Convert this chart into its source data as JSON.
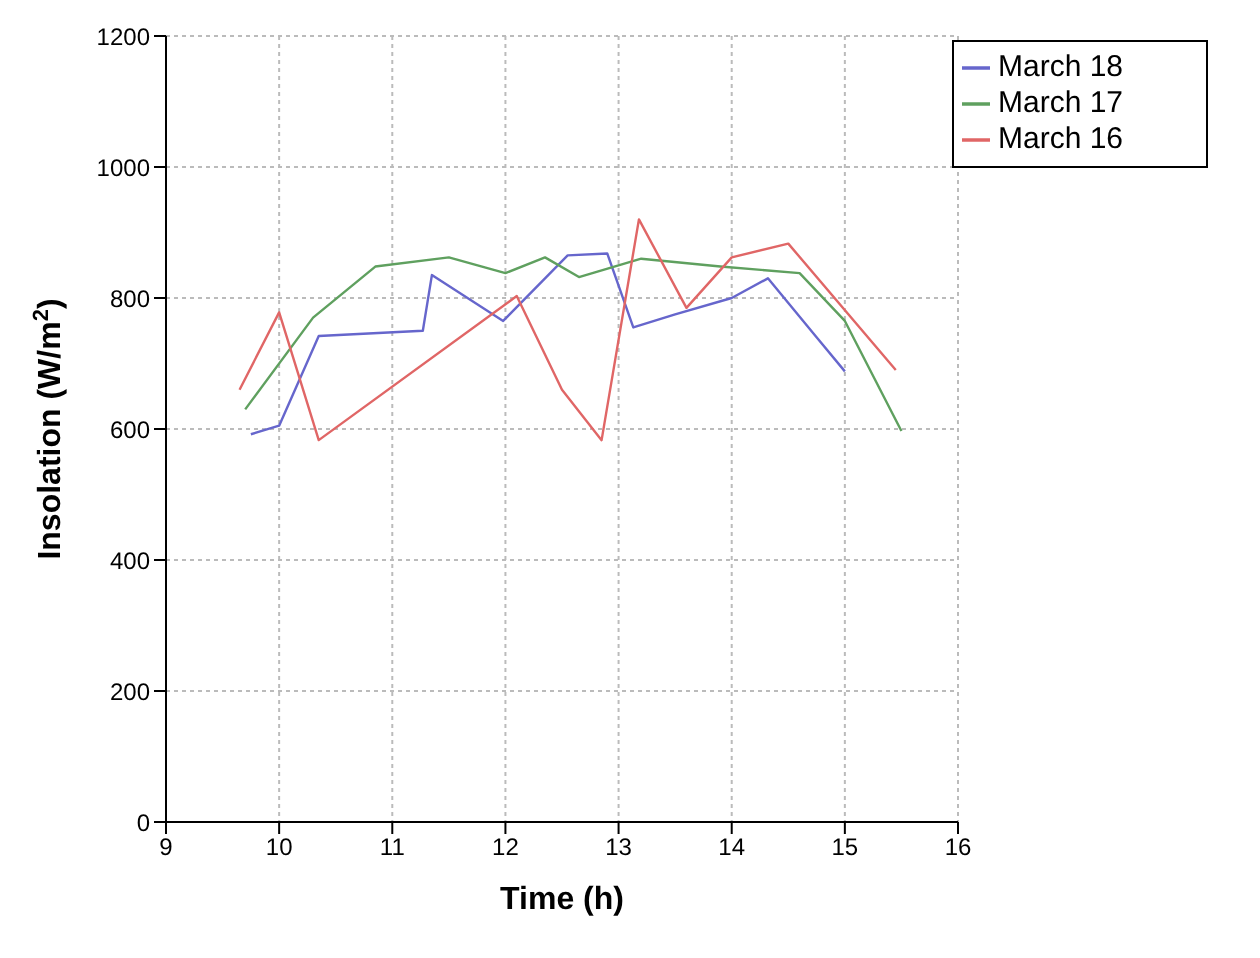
{
  "chart_data": {
    "type": "line",
    "xlabel": "Time (h)",
    "ylabel": "Insolation (W/m$^{2}$)",
    "xlim": [
      9,
      16
    ],
    "xticks": [
      9,
      10,
      11,
      12,
      13,
      14,
      15,
      16
    ],
    "ylim": [
      0,
      1200
    ],
    "yticks": [
      0,
      200,
      400,
      600,
      800,
      1000,
      1200
    ],
    "grid": true,
    "legend": "top right",
    "series": [
      {
        "name": "March 18",
        "color": "#6666cc",
        "x": [
          9.75,
          10,
          10.35,
          11.27,
          11.35,
          11.98,
          12.55,
          12.9,
          13.13,
          13.5,
          14,
          14.32,
          14.75,
          15
        ],
        "values": [
          592,
          605,
          742,
          750,
          835,
          765,
          865,
          868,
          755,
          775,
          800,
          830,
          740,
          688
        ]
      },
      {
        "name": "March 17",
        "color": "#5fa05f",
        "x": [
          9.7,
          10.3,
          10.85,
          11.5,
          12,
          12.35,
          12.65,
          13.2,
          13.9,
          14.6,
          15,
          15.5
        ],
        "values": [
          630,
          770,
          848,
          862,
          838,
          862,
          832,
          860,
          848,
          838,
          765,
          597
        ]
      },
      {
        "name": "March 16",
        "color": "#e06666",
        "x": [
          9.65,
          10,
          10.35,
          12.1,
          12.5,
          12.85,
          13.18,
          13.6,
          14,
          14.5,
          15.45
        ],
        "values": [
          660,
          778,
          583,
          803,
          660,
          583,
          920,
          785,
          862,
          883,
          690
        ]
      }
    ]
  }
}
